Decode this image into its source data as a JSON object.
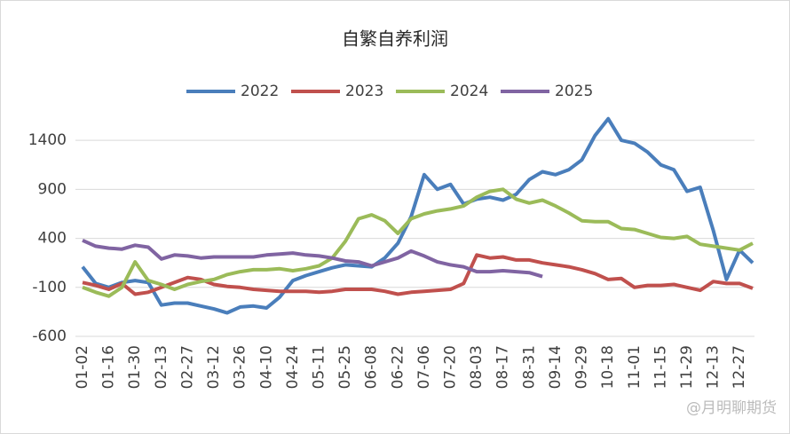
{
  "chart_data": {
    "type": "line",
    "title": "自繁自养利润",
    "categories": [
      "01-02",
      null,
      "01-16",
      null,
      "01-30",
      null,
      "02-13",
      null,
      "02-27",
      null,
      "03-12",
      null,
      "03-26",
      null,
      "04-10",
      null,
      "04-24",
      null,
      "05-11",
      null,
      "05-25",
      null,
      "06-08",
      null,
      "06-22",
      null,
      "07-06",
      null,
      "07-20",
      null,
      "08-03",
      null,
      "08-17",
      null,
      "08-31",
      null,
      "09-14",
      null,
      "09-29",
      null,
      "10-18",
      null,
      "11-01",
      null,
      "11-15",
      null,
      "11-29",
      null,
      "12-13",
      null,
      "12-27",
      null
    ],
    "series": [
      {
        "name": "2022",
        "color": "#4a7ebb",
        "values": [
          110,
          -60,
          -100,
          -50,
          -30,
          -50,
          -280,
          -260,
          -260,
          -290,
          -320,
          -360,
          -300,
          -290,
          -310,
          -200,
          -30,
          20,
          60,
          100,
          130,
          120,
          110,
          200,
          350,
          620,
          1050,
          900,
          950,
          750,
          800,
          820,
          790,
          850,
          1000,
          1080,
          1050,
          1100,
          1200,
          1450,
          1620,
          1400,
          1370,
          1280,
          1150,
          1100,
          880,
          920,
          480,
          -20,
          280,
          150
        ]
      },
      {
        "name": "2023",
        "color": "#c0504d",
        "values": [
          -50,
          -80,
          -120,
          -60,
          -170,
          -150,
          -100,
          -50,
          0,
          -20,
          -70,
          -90,
          -100,
          -120,
          -130,
          -140,
          -140,
          -140,
          -150,
          -140,
          -120,
          -120,
          -120,
          -140,
          -170,
          -150,
          -140,
          -130,
          -120,
          -60,
          230,
          200,
          210,
          180,
          180,
          150,
          130,
          110,
          80,
          40,
          -20,
          -10,
          -100,
          -80,
          -80,
          -70,
          -100,
          -130,
          -40,
          -60,
          -60,
          -110
        ]
      },
      {
        "name": "2024",
        "color": "#9bbb59",
        "values": [
          -100,
          -150,
          -190,
          -100,
          160,
          -30,
          -70,
          -120,
          -70,
          -40,
          -20,
          30,
          60,
          80,
          80,
          90,
          70,
          90,
          120,
          200,
          370,
          600,
          640,
          580,
          450,
          600,
          650,
          680,
          700,
          730,
          820,
          880,
          900,
          800,
          760,
          790,
          730,
          660,
          580,
          570,
          570,
          500,
          490,
          450,
          410,
          400,
          420,
          340,
          320,
          300,
          280,
          350
        ]
      },
      {
        "name": "2025",
        "color": "#8064a2",
        "values": [
          380,
          320,
          300,
          290,
          330,
          310,
          190,
          230,
          220,
          200,
          210,
          210,
          210,
          210,
          230,
          240,
          250,
          230,
          220,
          200,
          170,
          160,
          120,
          160,
          200,
          270,
          220,
          160,
          130,
          110,
          60,
          60,
          70,
          60,
          50,
          10,
          null,
          null,
          null,
          null,
          null,
          null,
          null,
          null,
          null,
          null,
          null,
          null,
          null,
          null,
          null,
          null
        ]
      }
    ],
    "ylim": [
      -600,
      1700
    ],
    "yticks": [
      -600,
      -100,
      400,
      900,
      1400
    ],
    "grid": true,
    "annotation": "@月明聊期货"
  }
}
